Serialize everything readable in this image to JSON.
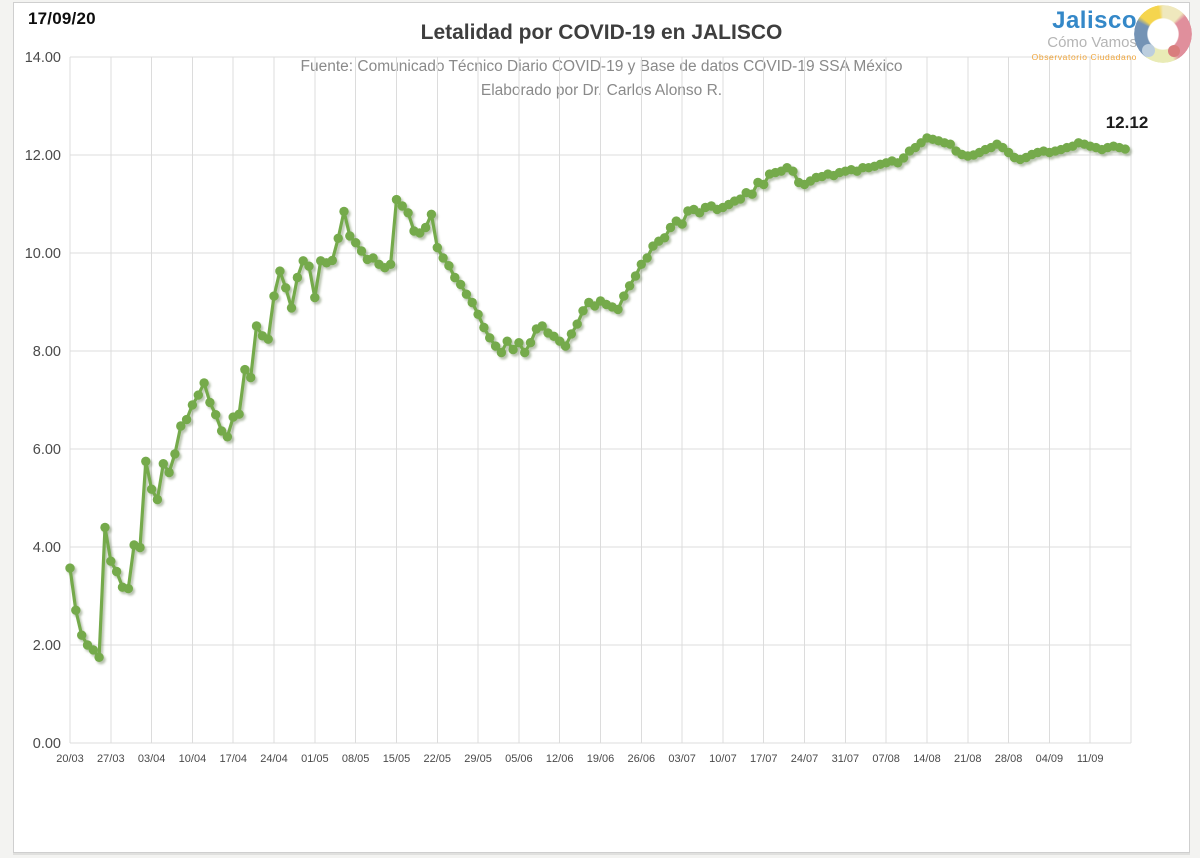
{
  "page": {
    "date_label": "17/09/20"
  },
  "header": {
    "source_line": "Fuente: Comunicado Técnico Diario COVID-19 y Base de datos COVID-19 SSA México",
    "author_line": "Elaborado por Dr. Carlos Alonso R."
  },
  "logo": {
    "name": "Jalisco",
    "tagline": "Cómo Vamos",
    "subtagline": "Observatorio Ciudadano"
  },
  "chart_data": {
    "type": "line",
    "title": "Letalidad por COVID-19 en JALISCO",
    "xlabel": "",
    "ylabel": "",
    "ylim": [
      0,
      14
    ],
    "grid": true,
    "legend": "none",
    "y_tick_labels": [
      "0.00",
      "2.00",
      "4.00",
      "6.00",
      "8.00",
      "10.00",
      "12.00",
      "14.00"
    ],
    "x_tick_labels": [
      "20/03",
      "27/03",
      "03/04",
      "10/04",
      "17/04",
      "24/04",
      "01/05",
      "08/05",
      "15/05",
      "22/05",
      "29/05",
      "05/06",
      "12/06",
      "19/06",
      "26/06",
      "03/07",
      "10/07",
      "17/07",
      "24/07",
      "31/07",
      "07/08",
      "14/08",
      "21/08",
      "28/08",
      "04/09",
      "11/09"
    ],
    "x_tick_day_indices": [
      0,
      7,
      14,
      21,
      28,
      35,
      42,
      49,
      56,
      63,
      70,
      77,
      84,
      91,
      98,
      105,
      112,
      119,
      126,
      133,
      140,
      147,
      154,
      161,
      168,
      175
    ],
    "x_total_days": 182,
    "last_point_label": "12.12",
    "line_color": "#74aa4c",
    "gridline_color": "#dcdcdc",
    "series": [
      {
        "name": "Letalidad por COVID-19 en Jalisco (%)",
        "daily_from": "20/03",
        "daily_to": "17/09",
        "values": [
          3.57,
          2.71,
          2.2,
          2.0,
          1.9,
          1.75,
          4.4,
          3.71,
          3.5,
          3.18,
          3.15,
          4.04,
          3.99,
          5.75,
          5.18,
          4.97,
          5.7,
          5.52,
          5.9,
          6.47,
          6.6,
          6.9,
          7.1,
          7.35,
          6.95,
          6.7,
          6.37,
          6.25,
          6.65,
          6.71,
          7.62,
          7.46,
          8.51,
          8.31,
          8.24,
          9.12,
          9.63,
          9.29,
          8.88,
          9.5,
          9.84,
          9.73,
          9.09,
          9.84,
          9.8,
          9.85,
          10.3,
          10.85,
          10.35,
          10.21,
          10.04,
          9.87,
          9.9,
          9.77,
          9.7,
          9.77,
          11.09,
          10.96,
          10.82,
          10.45,
          10.41,
          10.52,
          10.79,
          10.11,
          9.9,
          9.74,
          9.5,
          9.36,
          9.16,
          8.99,
          8.75,
          8.48,
          8.27,
          8.1,
          7.97,
          8.2,
          8.03,
          8.17,
          7.97,
          8.17,
          8.45,
          8.51,
          8.37,
          8.3,
          8.2,
          8.1,
          8.35,
          8.55,
          8.82,
          8.99,
          8.92,
          9.02,
          8.95,
          8.9,
          8.85,
          9.12,
          9.33,
          9.53,
          9.77,
          9.9,
          10.14,
          10.24,
          10.31,
          10.52,
          10.65,
          10.59,
          10.86,
          10.89,
          10.82,
          10.93,
          10.96,
          10.89,
          10.93,
          10.99,
          11.06,
          11.1,
          11.23,
          11.2,
          11.44,
          11.4,
          11.61,
          11.64,
          11.67,
          11.74,
          11.67,
          11.44,
          11.4,
          11.47,
          11.54,
          11.56,
          11.61,
          11.58,
          11.64,
          11.67,
          11.7,
          11.67,
          11.74,
          11.74,
          11.77,
          11.81,
          11.84,
          11.88,
          11.84,
          11.94,
          12.08,
          12.15,
          12.25,
          12.35,
          12.32,
          12.29,
          12.25,
          12.22,
          12.08,
          12.01,
          11.98,
          12.0,
          12.05,
          12.11,
          12.15,
          12.22,
          12.15,
          12.05,
          11.95,
          11.91,
          11.95,
          12.01,
          12.05,
          12.08,
          12.05,
          12.08,
          12.11,
          12.15,
          12.18,
          12.25,
          12.22,
          12.18,
          12.15,
          12.11,
          12.15,
          12.18,
          12.15,
          12.12
        ]
      }
    ]
  }
}
